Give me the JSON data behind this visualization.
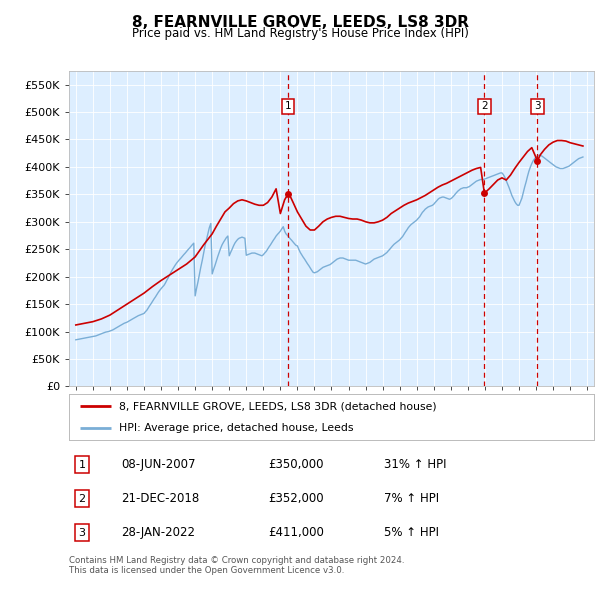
{
  "title": "8, FEARNVILLE GROVE, LEEDS, LS8 3DR",
  "subtitle": "Price paid vs. HM Land Registry's House Price Index (HPI)",
  "ylabel_ticks": [
    "£0",
    "£50K",
    "£100K",
    "£150K",
    "£200K",
    "£250K",
    "£300K",
    "£350K",
    "£400K",
    "£450K",
    "£500K",
    "£550K"
  ],
  "ytick_values": [
    0,
    50000,
    100000,
    150000,
    200000,
    250000,
    300000,
    350000,
    400000,
    450000,
    500000,
    550000
  ],
  "xlim": [
    1994.6,
    2025.4
  ],
  "ylim": [
    0,
    575000
  ],
  "transactions": [
    {
      "num": 1,
      "date": "08-JUN-2007",
      "price": 350000,
      "year": 2007.44,
      "hpi_pct": "31% ↑ HPI"
    },
    {
      "num": 2,
      "date": "21-DEC-2018",
      "price": 352000,
      "year": 2018.97,
      "hpi_pct": "7% ↑ HPI"
    },
    {
      "num": 3,
      "date": "28-JAN-2022",
      "price": 411000,
      "year": 2022.08,
      "hpi_pct": "5% ↑ HPI"
    }
  ],
  "legend_property": "8, FEARNVILLE GROVE, LEEDS, LS8 3DR (detached house)",
  "legend_hpi": "HPI: Average price, detached house, Leeds",
  "footer_line1": "Contains HM Land Registry data © Crown copyright and database right 2024.",
  "footer_line2": "This data is licensed under the Open Government Licence v3.0.",
  "red_color": "#cc0000",
  "blue_color": "#7aaed6",
  "bg_color": "#ddeeff",
  "grid_color": "#ffffff",
  "hpi_data": {
    "years": [
      1995.0,
      1995.08,
      1995.17,
      1995.25,
      1995.33,
      1995.42,
      1995.5,
      1995.58,
      1995.67,
      1995.75,
      1995.83,
      1995.92,
      1996.0,
      1996.08,
      1996.17,
      1996.25,
      1996.33,
      1996.42,
      1996.5,
      1996.58,
      1996.67,
      1996.75,
      1996.83,
      1996.92,
      1997.0,
      1997.08,
      1997.17,
      1997.25,
      1997.33,
      1997.42,
      1997.5,
      1997.58,
      1997.67,
      1997.75,
      1997.83,
      1997.92,
      1998.0,
      1998.08,
      1998.17,
      1998.25,
      1998.33,
      1998.42,
      1998.5,
      1998.58,
      1998.67,
      1998.75,
      1998.83,
      1998.92,
      1999.0,
      1999.08,
      1999.17,
      1999.25,
      1999.33,
      1999.42,
      1999.5,
      1999.58,
      1999.67,
      1999.75,
      1999.83,
      1999.92,
      2000.0,
      2000.08,
      2000.17,
      2000.25,
      2000.33,
      2000.42,
      2000.5,
      2000.58,
      2000.67,
      2000.75,
      2000.83,
      2000.92,
      2001.0,
      2001.08,
      2001.17,
      2001.25,
      2001.33,
      2001.42,
      2001.5,
      2001.58,
      2001.67,
      2001.75,
      2001.83,
      2001.92,
      2002.0,
      2002.08,
      2002.17,
      2002.25,
      2002.33,
      2002.42,
      2002.5,
      2002.58,
      2002.67,
      2002.75,
      2002.83,
      2002.92,
      2003.0,
      2003.08,
      2003.17,
      2003.25,
      2003.33,
      2003.42,
      2003.5,
      2003.58,
      2003.67,
      2003.75,
      2003.83,
      2003.92,
      2004.0,
      2004.08,
      2004.17,
      2004.25,
      2004.33,
      2004.42,
      2004.5,
      2004.58,
      2004.67,
      2004.75,
      2004.83,
      2004.92,
      2005.0,
      2005.08,
      2005.17,
      2005.25,
      2005.33,
      2005.42,
      2005.5,
      2005.58,
      2005.67,
      2005.75,
      2005.83,
      2005.92,
      2006.0,
      2006.08,
      2006.17,
      2006.25,
      2006.33,
      2006.42,
      2006.5,
      2006.58,
      2006.67,
      2006.75,
      2006.83,
      2006.92,
      2007.0,
      2007.08,
      2007.17,
      2007.25,
      2007.33,
      2007.42,
      2007.5,
      2007.58,
      2007.67,
      2007.75,
      2007.83,
      2007.92,
      2008.0,
      2008.08,
      2008.17,
      2008.25,
      2008.33,
      2008.42,
      2008.5,
      2008.58,
      2008.67,
      2008.75,
      2008.83,
      2008.92,
      2009.0,
      2009.08,
      2009.17,
      2009.25,
      2009.33,
      2009.42,
      2009.5,
      2009.58,
      2009.67,
      2009.75,
      2009.83,
      2009.92,
      2010.0,
      2010.08,
      2010.17,
      2010.25,
      2010.33,
      2010.42,
      2010.5,
      2010.58,
      2010.67,
      2010.75,
      2010.83,
      2010.92,
      2011.0,
      2011.08,
      2011.17,
      2011.25,
      2011.33,
      2011.42,
      2011.5,
      2011.58,
      2011.67,
      2011.75,
      2011.83,
      2011.92,
      2012.0,
      2012.08,
      2012.17,
      2012.25,
      2012.33,
      2012.42,
      2012.5,
      2012.58,
      2012.67,
      2012.75,
      2012.83,
      2012.92,
      2013.0,
      2013.08,
      2013.17,
      2013.25,
      2013.33,
      2013.42,
      2013.5,
      2013.58,
      2013.67,
      2013.75,
      2013.83,
      2013.92,
      2014.0,
      2014.08,
      2014.17,
      2014.25,
      2014.33,
      2014.42,
      2014.5,
      2014.58,
      2014.67,
      2014.75,
      2014.83,
      2014.92,
      2015.0,
      2015.08,
      2015.17,
      2015.25,
      2015.33,
      2015.42,
      2015.5,
      2015.58,
      2015.67,
      2015.75,
      2015.83,
      2015.92,
      2016.0,
      2016.08,
      2016.17,
      2016.25,
      2016.33,
      2016.42,
      2016.5,
      2016.58,
      2016.67,
      2016.75,
      2016.83,
      2016.92,
      2017.0,
      2017.08,
      2017.17,
      2017.25,
      2017.33,
      2017.42,
      2017.5,
      2017.58,
      2017.67,
      2017.75,
      2017.83,
      2017.92,
      2018.0,
      2018.08,
      2018.17,
      2018.25,
      2018.33,
      2018.42,
      2018.5,
      2018.58,
      2018.67,
      2018.75,
      2018.83,
      2018.92,
      2019.0,
      2019.08,
      2019.17,
      2019.25,
      2019.33,
      2019.42,
      2019.5,
      2019.58,
      2019.67,
      2019.75,
      2019.83,
      2019.92,
      2020.0,
      2020.08,
      2020.17,
      2020.25,
      2020.33,
      2020.42,
      2020.5,
      2020.58,
      2020.67,
      2020.75,
      2020.83,
      2020.92,
      2021.0,
      2021.08,
      2021.17,
      2021.25,
      2021.33,
      2021.42,
      2021.5,
      2021.58,
      2021.67,
      2021.75,
      2021.83,
      2021.92,
      2022.0,
      2022.08,
      2022.17,
      2022.25,
      2022.33,
      2022.42,
      2022.5,
      2022.58,
      2022.67,
      2022.75,
      2022.83,
      2022.92,
      2023.0,
      2023.08,
      2023.17,
      2023.25,
      2023.33,
      2023.42,
      2023.5,
      2023.58,
      2023.67,
      2023.75,
      2023.83,
      2023.92,
      2024.0,
      2024.08,
      2024.17,
      2024.25,
      2024.33,
      2024.42,
      2024.5,
      2024.58,
      2024.67,
      2024.75
    ],
    "values": [
      85000,
      85500,
      86000,
      86500,
      87000,
      87500,
      88000,
      88500,
      89000,
      89500,
      90000,
      90500,
      91000,
      91500,
      92000,
      93000,
      94000,
      95000,
      96000,
      97000,
      98000,
      99000,
      99500,
      100000,
      101000,
      102000,
      103000,
      104500,
      106000,
      107500,
      109000,
      110500,
      112000,
      113500,
      115000,
      116000,
      117000,
      118500,
      120000,
      121500,
      123000,
      124500,
      126000,
      127500,
      129000,
      130000,
      131000,
      132000,
      133000,
      136000,
      139000,
      143000,
      147000,
      151000,
      155000,
      159000,
      163000,
      167000,
      171000,
      175000,
      178000,
      181000,
      184000,
      188000,
      193000,
      198000,
      203000,
      208000,
      213000,
      217000,
      221000,
      225000,
      228000,
      231000,
      234000,
      237000,
      240000,
      243000,
      246000,
      249000,
      252000,
      255000,
      258000,
      261000,
      165000,
      178000,
      191000,
      204000,
      217000,
      230000,
      243000,
      256000,
      268000,
      279000,
      289000,
      297000,
      205000,
      213000,
      221000,
      229000,
      237000,
      245000,
      252000,
      258000,
      263000,
      267000,
      271000,
      274000,
      238000,
      244000,
      250000,
      256000,
      261000,
      265000,
      268000,
      270000,
      271000,
      272000,
      271000,
      270000,
      239000,
      240000,
      241000,
      242000,
      243000,
      243000,
      243000,
      242000,
      241000,
      240000,
      239000,
      238000,
      240000,
      243000,
      246000,
      250000,
      254000,
      258000,
      262000,
      266000,
      270000,
      274000,
      277000,
      280000,
      283000,
      287000,
      291000,
      283000,
      278000,
      275000,
      272000,
      269000,
      266000,
      263000,
      260000,
      257000,
      256000,
      250000,
      244000,
      240000,
      236000,
      232000,
      228000,
      224000,
      220000,
      216000,
      212000,
      208000,
      207000,
      208000,
      209000,
      211000,
      213000,
      215000,
      217000,
      218000,
      219000,
      220000,
      221000,
      222000,
      224000,
      226000,
      228000,
      230000,
      232000,
      233000,
      234000,
      234000,
      234000,
      233000,
      232000,
      231000,
      230000,
      230000,
      230000,
      230000,
      230000,
      230000,
      229000,
      228000,
      227000,
      226000,
      225000,
      224000,
      223000,
      224000,
      225000,
      226000,
      228000,
      230000,
      232000,
      233000,
      234000,
      235000,
      236000,
      237000,
      238000,
      240000,
      242000,
      244000,
      247000,
      250000,
      253000,
      256000,
      259000,
      261000,
      263000,
      265000,
      267000,
      270000,
      273000,
      277000,
      281000,
      285000,
      289000,
      292000,
      295000,
      297000,
      299000,
      301000,
      303000,
      306000,
      309000,
      313000,
      317000,
      320000,
      323000,
      325000,
      327000,
      328000,
      329000,
      330000,
      332000,
      335000,
      338000,
      341000,
      343000,
      344000,
      345000,
      345000,
      344000,
      343000,
      342000,
      341000,
      342000,
      344000,
      347000,
      350000,
      353000,
      356000,
      358000,
      360000,
      361000,
      362000,
      362000,
      362000,
      363000,
      364000,
      366000,
      368000,
      370000,
      372000,
      374000,
      375000,
      376000,
      377000,
      377000,
      377000,
      378000,
      379000,
      380000,
      381000,
      382000,
      383000,
      384000,
      385000,
      386000,
      387000,
      388000,
      389000,
      389000,
      386000,
      381000,
      375000,
      369000,
      362000,
      355000,
      348000,
      342000,
      337000,
      333000,
      330000,
      330000,
      336000,
      343000,
      353000,
      363000,
      373000,
      383000,
      392000,
      400000,
      406000,
      411000,
      415000,
      418000,
      420000,
      421000,
      421000,
      420000,
      418000,
      416000,
      414000,
      412000,
      410000,
      408000,
      406000,
      404000,
      402000,
      400000,
      399000,
      398000,
      397000,
      397000,
      397000,
      398000,
      399000,
      400000,
      401000,
      403000,
      405000,
      407000,
      409000,
      411000,
      413000,
      415000,
      416000,
      417000,
      418000
    ]
  },
  "property_data": {
    "years": [
      1995.0,
      1995.5,
      1996.0,
      1996.5,
      1997.0,
      1997.5,
      1998.0,
      1998.5,
      1999.0,
      1999.5,
      2000.0,
      2000.5,
      2001.0,
      2001.5,
      2002.0,
      2002.5,
      2003.0,
      2003.25,
      2003.5,
      2003.75,
      2004.0,
      2004.25,
      2004.5,
      2004.75,
      2005.0,
      2005.25,
      2005.5,
      2005.75,
      2006.0,
      2006.25,
      2006.5,
      2006.75,
      2007.0,
      2007.25,
      2007.44,
      2007.6,
      2007.75,
      2008.0,
      2008.25,
      2008.5,
      2008.75,
      2009.0,
      2009.25,
      2009.5,
      2009.75,
      2010.0,
      2010.25,
      2010.5,
      2010.75,
      2011.0,
      2011.25,
      2011.5,
      2011.75,
      2012.0,
      2012.25,
      2012.5,
      2012.75,
      2013.0,
      2013.25,
      2013.5,
      2013.75,
      2014.0,
      2014.25,
      2014.5,
      2014.75,
      2015.0,
      2015.25,
      2015.5,
      2015.75,
      2016.0,
      2016.25,
      2016.5,
      2016.75,
      2017.0,
      2017.25,
      2017.5,
      2017.75,
      2018.0,
      2018.25,
      2018.5,
      2018.75,
      2018.97,
      2019.25,
      2019.5,
      2019.75,
      2020.0,
      2020.25,
      2020.5,
      2020.75,
      2021.0,
      2021.25,
      2021.5,
      2021.75,
      2022.08,
      2022.25,
      2022.5,
      2022.75,
      2023.0,
      2023.25,
      2023.5,
      2023.75,
      2024.0,
      2024.25,
      2024.5,
      2024.75
    ],
    "values": [
      112000,
      115000,
      118000,
      123000,
      130000,
      140000,
      150000,
      160000,
      170000,
      182000,
      193000,
      203000,
      213000,
      223000,
      236000,
      258000,
      278000,
      292000,
      305000,
      318000,
      325000,
      333000,
      338000,
      340000,
      338000,
      335000,
      332000,
      330000,
      330000,
      335000,
      345000,
      360000,
      315000,
      340000,
      350000,
      345000,
      335000,
      318000,
      305000,
      292000,
      285000,
      285000,
      292000,
      300000,
      305000,
      308000,
      310000,
      310000,
      308000,
      306000,
      305000,
      305000,
      303000,
      300000,
      298000,
      298000,
      300000,
      303000,
      308000,
      315000,
      320000,
      325000,
      330000,
      334000,
      337000,
      340000,
      344000,
      348000,
      353000,
      358000,
      363000,
      367000,
      370000,
      374000,
      378000,
      382000,
      386000,
      390000,
      394000,
      397000,
      399000,
      352000,
      360000,
      368000,
      376000,
      380000,
      376000,
      385000,
      397000,
      408000,
      418000,
      428000,
      435000,
      411000,
      422000,
      432000,
      440000,
      445000,
      448000,
      448000,
      447000,
      444000,
      442000,
      440000,
      438000
    ]
  }
}
